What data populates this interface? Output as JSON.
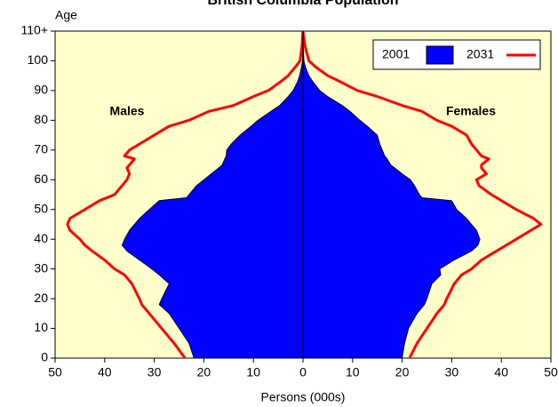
{
  "chart_data": {
    "type": "population_pyramid",
    "title": "British Columbia Population",
    "y_label": "Age",
    "x_label": "Persons (000s)",
    "annotations": [
      "Males",
      "Females"
    ],
    "ages": [
      0,
      5,
      10,
      15,
      18,
      20,
      25,
      28,
      30,
      33,
      36,
      38,
      40,
      43,
      45,
      47,
      50,
      53,
      54,
      55,
      58,
      60,
      62,
      64,
      65,
      67,
      68,
      70,
      72,
      75,
      78,
      80,
      83,
      85,
      88,
      90,
      93,
      95,
      98,
      100,
      105,
      110
    ],
    "series": [
      {
        "name": "2001",
        "color": "#0000ff",
        "style": "area",
        "males": [
          22,
          23,
          25,
          27,
          29,
          28.5,
          27,
          29,
          30.5,
          33,
          35.5,
          36.5,
          36,
          35,
          34,
          33,
          31,
          29,
          23.5,
          23,
          21.5,
          20,
          18.5,
          17,
          16.3,
          15.8,
          15.5,
          15.4,
          14.5,
          12.7,
          10.5,
          9.1,
          6.5,
          4.7,
          3,
          2,
          1.1,
          0.7,
          0.3,
          0.1,
          0,
          0
        ],
        "females": [
          20,
          20.5,
          21.3,
          23,
          24.5,
          25,
          26,
          27.8,
          27.6,
          30.5,
          34,
          35.3,
          35.7,
          35,
          34,
          33,
          31,
          30,
          24,
          23.5,
          22.5,
          21.7,
          20,
          18.5,
          17.7,
          17,
          16.5,
          16,
          15.5,
          15,
          13,
          11.5,
          9.5,
          7.9,
          5,
          3.4,
          2,
          1.2,
          0.5,
          0.2,
          0.05,
          0
        ]
      },
      {
        "name": "2031",
        "color": "#ff0000",
        "style": "line",
        "males": [
          23.8,
          26,
          28.5,
          31,
          32.5,
          33,
          34.5,
          36,
          38,
          40,
          42.5,
          44,
          45,
          47,
          47.5,
          47,
          44,
          41,
          39.5,
          38,
          36.5,
          35.5,
          35,
          35.5,
          35,
          34,
          36,
          35,
          33,
          30,
          27,
          23,
          19,
          14,
          10,
          7,
          4.5,
          3,
          1.5,
          0.6,
          0.2,
          0
        ],
        "females": [
          21.5,
          23,
          25,
          27,
          28.5,
          29,
          30.5,
          32,
          34,
          36,
          39,
          41,
          43,
          46,
          48,
          46.5,
          43,
          40,
          39,
          38,
          35.5,
          35,
          37,
          36,
          36,
          37.5,
          36,
          35,
          34,
          33,
          30,
          27,
          24,
          20,
          15,
          11,
          7.5,
          5,
          2.5,
          1.2,
          0.4,
          0
        ]
      }
    ],
    "xlim": [
      -50,
      50
    ],
    "xticks": [
      {
        "value": -50,
        "label": "50"
      },
      {
        "value": -40,
        "label": "40"
      },
      {
        "value": -30,
        "label": "30"
      },
      {
        "value": -20,
        "label": "20"
      },
      {
        "value": -10,
        "label": "10"
      },
      0,
      10,
      20,
      30,
      40,
      50
    ],
    "ylim": [
      0,
      110
    ],
    "yticks": [
      0,
      10,
      20,
      30,
      40,
      50,
      60,
      70,
      80,
      90,
      100,
      {
        "value": 110,
        "label": "110+"
      }
    ],
    "plot_background": "#ffffcc",
    "legend": "top-right"
  }
}
